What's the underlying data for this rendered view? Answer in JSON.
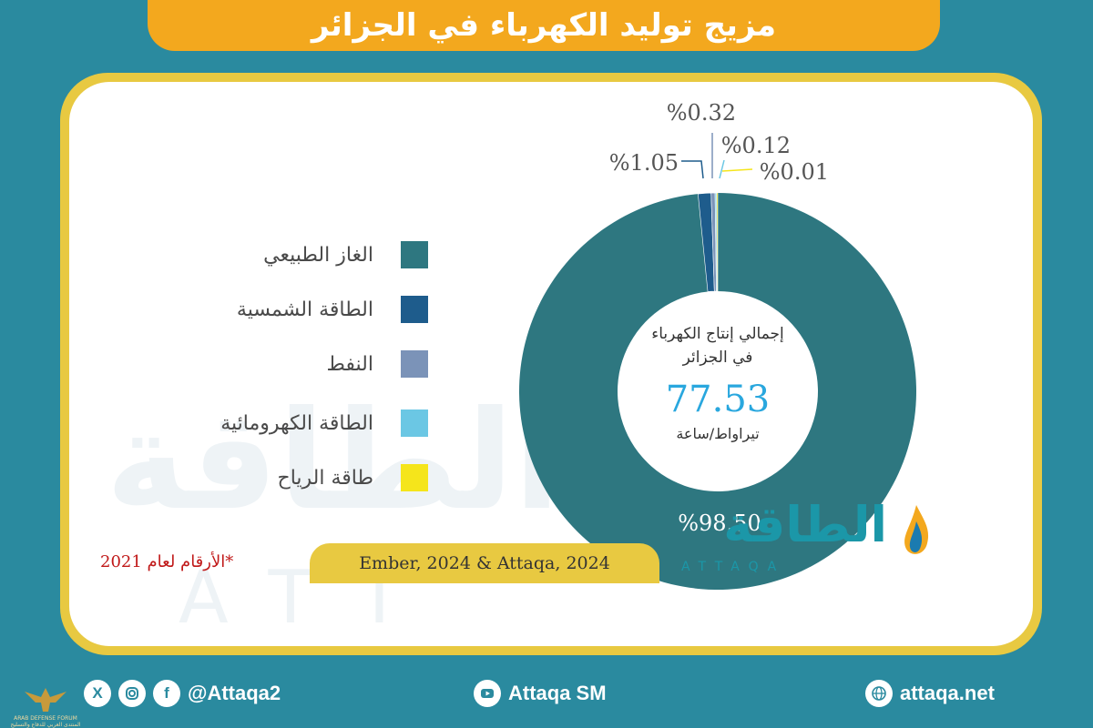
{
  "title": "مزيج توليد الكهرباء في الجزائر",
  "chart_data": {
    "type": "pie",
    "categories": [
      "الغاز الطبيعي",
      "الطاقة الشمسية",
      "النفط",
      "الطاقة الكهرومائية",
      "طاقة الرياح"
    ],
    "values": [
      98.5,
      1.05,
      0.32,
      0.12,
      0.01
    ],
    "value_labels": [
      "%98.50",
      "%1.05",
      "%0.32",
      "%0.12",
      "%0.01"
    ],
    "colors": [
      "#2e7780",
      "#1e5c8c",
      "#7b93b8",
      "#6bc7e4",
      "#f5e51b"
    ],
    "legend_position": "left",
    "center": {
      "label_line1": "إجمالي إنتاج الكهرباء",
      "label_line2": "في الجزائر",
      "total": "77.53",
      "unit": "تيراواط/ساعة"
    }
  },
  "note": "*الأرقام لعام 2021",
  "source": "Ember, 2024 & Attaqa, 2024",
  "logo": {
    "ar": "الطاقة",
    "en": "ATTAQA"
  },
  "footer": {
    "forum_badge": {
      "lines": [
        "ARAB DEFENSE FORUM",
        "المنتدى العربي للدفاع والتسليح"
      ]
    },
    "social_handle": "@Attaqa2",
    "youtube": "Attaqa SM",
    "website": "attaqa.net",
    "icons": [
      "x-icon",
      "instagram-icon",
      "facebook-icon",
      "youtube-icon",
      "globe-icon"
    ]
  }
}
